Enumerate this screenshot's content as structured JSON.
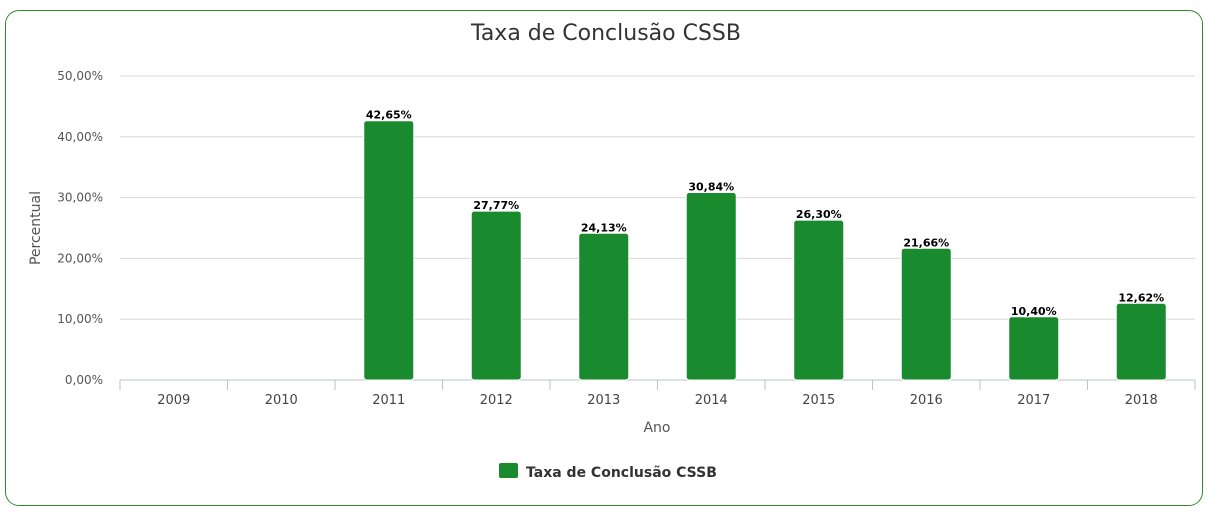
{
  "chart_data": {
    "type": "bar",
    "title": "Taxa de Conclusão CSSB",
    "xlabel": "Ano",
    "ylabel": "Percentual",
    "categories": [
      "2009",
      "2010",
      "2011",
      "2012",
      "2013",
      "2014",
      "2015",
      "2016",
      "2017",
      "2018"
    ],
    "series": [
      {
        "name": "Taxa de Conclusão CSSB",
        "values": [
          0,
          0,
          42.65,
          27.77,
          24.13,
          30.84,
          26.3,
          21.66,
          10.4,
          12.62
        ],
        "labels": [
          "",
          "",
          "42,65%",
          "27,77%",
          "24,13%",
          "30,84%",
          "26,30%",
          "21,66%",
          "10,40%",
          "12,62%"
        ],
        "color": "#1a8a2e"
      }
    ],
    "ylim": [
      0,
      50
    ],
    "yticks": [
      0,
      10,
      20,
      30,
      40,
      50
    ],
    "ytick_labels": [
      "0,00%",
      "10,00%",
      "20,00%",
      "30,00%",
      "40,00%",
      "50,00%"
    ],
    "grid": true,
    "legend": "bottom-center"
  },
  "colors": {
    "frame": "#2e8b2e",
    "bar": "#1a8a2e",
    "grid": "#d8d8d8"
  }
}
